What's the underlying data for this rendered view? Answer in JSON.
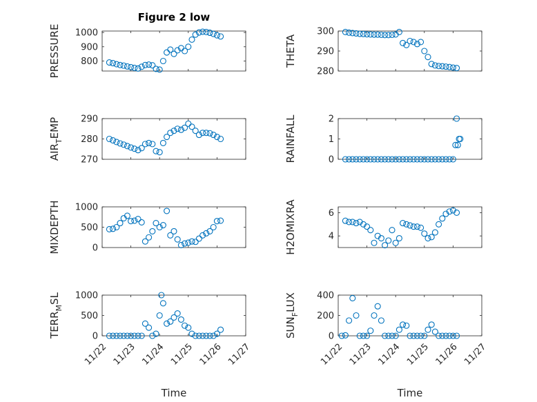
{
  "figure_title": "Figure 2 low",
  "colors": {
    "marker": "#0072BD",
    "axis": "#262626",
    "grid": "#dcdcdc"
  },
  "chart_data": [
    {
      "type": "scatter",
      "panel": "PRESSURE",
      "ylabel": "PRESSURE",
      "xlim": [
        "11/22",
        "11/27"
      ],
      "ylim": [
        730,
        1010
      ],
      "yticks": [
        800,
        900,
        1000
      ],
      "x": [
        "11/22 06:00",
        "11/22 09:00",
        "11/22 12:00",
        "11/22 15:00",
        "11/22 18:00",
        "11/22 21:00",
        "11/23 00:00",
        "11/23 03:00",
        "11/23 06:00",
        "11/23 09:00",
        "11/23 12:00",
        "11/23 15:00",
        "11/23 18:00",
        "11/23 21:00",
        "11/24 00:00",
        "11/24 03:00",
        "11/24 06:00",
        "11/24 09:00",
        "11/24 12:00",
        "11/24 15:00",
        "11/24 18:00",
        "11/24 21:00",
        "11/25 00:00",
        "11/25 03:00",
        "11/25 06:00",
        "11/25 09:00",
        "11/25 12:00",
        "11/25 15:00",
        "11/25 18:00",
        "11/25 21:00",
        "11/26 00:00",
        "11/26 03:00"
      ],
      "y": [
        790,
        785,
        778,
        772,
        768,
        762,
        757,
        752,
        748,
        760,
        772,
        775,
        770,
        745,
        740,
        800,
        860,
        880,
        850,
        875,
        890,
        870,
        900,
        950,
        985,
        1000,
        1005,
        1003,
        998,
        990,
        980,
        972
      ]
    },
    {
      "type": "scatter",
      "panel": "THETA",
      "ylabel": "THETA",
      "xlim": [
        "11/22",
        "11/27"
      ],
      "ylim": [
        280,
        300
      ],
      "yticks": [
        280,
        290,
        300
      ],
      "x": [
        "11/22 06:00",
        "11/22 09:00",
        "11/22 12:00",
        "11/22 15:00",
        "11/22 18:00",
        "11/22 21:00",
        "11/23 00:00",
        "11/23 03:00",
        "11/23 06:00",
        "11/23 09:00",
        "11/23 12:00",
        "11/23 15:00",
        "11/23 18:00",
        "11/23 21:00",
        "11/24 00:00",
        "11/24 03:00",
        "11/24 06:00",
        "11/24 09:00",
        "11/24 12:00",
        "11/24 15:00",
        "11/24 18:00",
        "11/24 21:00",
        "11/25 00:00",
        "11/25 03:00",
        "11/25 06:00",
        "11/25 09:00",
        "11/25 12:00",
        "11/25 15:00",
        "11/25 18:00",
        "11/25 21:00",
        "11/26 00:00",
        "11/26 03:00"
      ],
      "y": [
        299.5,
        299.2,
        299,
        298.8,
        298.6,
        298.5,
        298.4,
        298.3,
        298.2,
        298.2,
        298.1,
        298,
        298,
        298.1,
        298.3,
        299.5,
        294,
        293,
        295,
        294.5,
        293.5,
        294.5,
        290,
        287,
        283.5,
        282.8,
        282.5,
        282.4,
        282.2,
        282,
        281.7,
        281.5
      ]
    },
    {
      "type": "scatter",
      "panel": "AIR_TEMP",
      "ylabel": "AIR_TEMP",
      "xlim": [
        "11/22",
        "11/27"
      ],
      "ylim": [
        270,
        290
      ],
      "yticks": [
        270,
        280,
        290
      ],
      "x": [
        "11/22 06:00",
        "11/22 09:00",
        "11/22 12:00",
        "11/22 15:00",
        "11/22 18:00",
        "11/22 21:00",
        "11/23 00:00",
        "11/23 03:00",
        "11/23 06:00",
        "11/23 09:00",
        "11/23 12:00",
        "11/23 15:00",
        "11/23 18:00",
        "11/23 21:00",
        "11/24 00:00",
        "11/24 03:00",
        "11/24 06:00",
        "11/24 09:00",
        "11/24 12:00",
        "11/24 15:00",
        "11/24 18:00",
        "11/24 21:00",
        "11/25 00:00",
        "11/25 03:00",
        "11/25 06:00",
        "11/25 09:00",
        "11/25 12:00",
        "11/25 15:00",
        "11/25 18:00",
        "11/25 21:00",
        "11/26 00:00",
        "11/26 03:00"
      ],
      "y": [
        280,
        279.3,
        278.5,
        277.8,
        277.2,
        276.5,
        275.8,
        275.2,
        274.5,
        275.5,
        277.5,
        278,
        277.5,
        274,
        273.5,
        278,
        281,
        283,
        284,
        285,
        284.5,
        285.5,
        287.5,
        286,
        284,
        282,
        283,
        283,
        282.8,
        282,
        281,
        280
      ]
    },
    {
      "type": "scatter",
      "panel": "RAINFALL",
      "ylabel": "RAINFALL",
      "xlim": [
        "11/22",
        "11/27"
      ],
      "ylim": [
        0,
        2
      ],
      "yticks": [
        0,
        1,
        2
      ],
      "x": [
        "11/22 06:00",
        "11/22 09:00",
        "11/22 12:00",
        "11/22 15:00",
        "11/22 18:00",
        "11/22 21:00",
        "11/23 00:00",
        "11/23 03:00",
        "11/23 06:00",
        "11/23 09:00",
        "11/23 12:00",
        "11/23 15:00",
        "11/23 18:00",
        "11/23 21:00",
        "11/24 00:00",
        "11/24 03:00",
        "11/24 06:00",
        "11/24 09:00",
        "11/24 12:00",
        "11/24 15:00",
        "11/24 18:00",
        "11/24 21:00",
        "11/25 00:00",
        "11/25 03:00",
        "11/25 06:00",
        "11/25 09:00",
        "11/25 12:00",
        "11/25 15:00",
        "11/25 18:00",
        "11/25 21:00",
        "11/26 00:00",
        "11/26 02:00",
        "11/26 03:00",
        "11/26 04:00",
        "11/26 05:00",
        "11/26 06:00"
      ],
      "y": [
        0,
        0,
        0,
        0,
        0,
        0,
        0,
        0,
        0,
        0,
        0,
        0,
        0,
        0,
        0,
        0,
        0,
        0,
        0,
        0,
        0,
        0,
        0,
        0,
        0,
        0,
        0,
        0,
        0,
        0,
        0,
        0.7,
        2,
        0.7,
        1,
        1
      ]
    },
    {
      "type": "scatter",
      "panel": "MIXDEPTH",
      "ylabel": "MIXDEPTH",
      "xlim": [
        "11/22",
        "11/27"
      ],
      "ylim": [
        0,
        1000
      ],
      "yticks": [
        0,
        500,
        1000
      ],
      "x": [
        "11/22 06:00",
        "11/22 09:00",
        "11/22 12:00",
        "11/22 15:00",
        "11/22 18:00",
        "11/22 21:00",
        "11/23 00:00",
        "11/23 03:00",
        "11/23 06:00",
        "11/23 09:00",
        "11/23 12:00",
        "11/23 15:00",
        "11/23 18:00",
        "11/23 21:00",
        "11/24 00:00",
        "11/24 03:00",
        "11/24 06:00",
        "11/24 09:00",
        "11/24 12:00",
        "11/24 15:00",
        "11/24 18:00",
        "11/24 21:00",
        "11/25 00:00",
        "11/25 03:00",
        "11/25 06:00",
        "11/25 09:00",
        "11/25 12:00",
        "11/25 15:00",
        "11/25 18:00",
        "11/25 21:00",
        "11/26 00:00",
        "11/26 03:00"
      ],
      "y": [
        450,
        460,
        500,
        600,
        720,
        780,
        650,
        660,
        700,
        620,
        150,
        250,
        400,
        600,
        500,
        550,
        900,
        300,
        400,
        200,
        60,
        100,
        120,
        150,
        140,
        220,
        300,
        350,
        400,
        500,
        650,
        660
      ]
    },
    {
      "type": "scatter",
      "panel": "H2OMIXRA",
      "ylabel": "H2OMIXRA",
      "xlim": [
        "11/22",
        "11/27"
      ],
      "ylim": [
        3,
        6.5
      ],
      "yticks": [
        4,
        6
      ],
      "x": [
        "11/22 06:00",
        "11/22 09:00",
        "11/22 12:00",
        "11/22 15:00",
        "11/22 18:00",
        "11/22 21:00",
        "11/23 00:00",
        "11/23 03:00",
        "11/23 06:00",
        "11/23 09:00",
        "11/23 12:00",
        "11/23 15:00",
        "11/23 18:00",
        "11/23 21:00",
        "11/24 00:00",
        "11/24 03:00",
        "11/24 06:00",
        "11/24 09:00",
        "11/24 12:00",
        "11/24 15:00",
        "11/24 18:00",
        "11/24 21:00",
        "11/25 00:00",
        "11/25 03:00",
        "11/25 06:00",
        "11/25 09:00",
        "11/25 12:00",
        "11/25 15:00",
        "11/25 18:00",
        "11/25 21:00",
        "11/26 00:00",
        "11/26 03:00"
      ],
      "y": [
        5.3,
        5.2,
        5.2,
        5.1,
        5.2,
        5,
        4.8,
        4.5,
        3.4,
        4,
        3.8,
        3.2,
        3.6,
        4.5,
        3.4,
        3.8,
        5.1,
        5,
        4.9,
        4.8,
        4.8,
        4.7,
        4.2,
        3.8,
        3.9,
        4.3,
        5,
        5.5,
        5.9,
        6.1,
        6.2,
        6
      ]
    },
    {
      "type": "scatter",
      "panel": "TERR_MSL",
      "ylabel": "TERR_MSL",
      "xlim": [
        "11/22",
        "11/27"
      ],
      "ylim": [
        0,
        1000
      ],
      "yticks": [
        0,
        500,
        1000
      ],
      "x": [
        "11/22 06:00",
        "11/22 09:00",
        "11/22 12:00",
        "11/22 15:00",
        "11/22 18:00",
        "11/22 21:00",
        "11/23 00:00",
        "11/23 03:00",
        "11/23 06:00",
        "11/23 09:00",
        "11/23 12:00",
        "11/23 15:00",
        "11/23 18:00",
        "11/23 21:00",
        "11/24 00:00",
        "11/24 01:30",
        "11/24 03:00",
        "11/24 06:00",
        "11/24 09:00",
        "11/24 12:00",
        "11/24 15:00",
        "11/24 18:00",
        "11/24 21:00",
        "11/25 00:00",
        "11/25 03:00",
        "11/25 06:00",
        "11/25 09:00",
        "11/25 12:00",
        "11/25 15:00",
        "11/25 18:00",
        "11/25 21:00",
        "11/26 00:00",
        "11/26 03:00"
      ],
      "y": [
        0,
        0,
        0,
        0,
        0,
        0,
        0,
        0,
        0,
        0,
        300,
        200,
        0,
        50,
        500,
        1000,
        800,
        300,
        350,
        450,
        550,
        400,
        250,
        200,
        50,
        0,
        0,
        0,
        0,
        0,
        0,
        50,
        150
      ]
    },
    {
      "type": "scatter",
      "panel": "SUN_FLUX",
      "ylabel": "SUN_FLUX",
      "xlim": [
        "11/22",
        "11/27"
      ],
      "ylim": [
        0,
        400
      ],
      "yticks": [
        0,
        200,
        400
      ],
      "x": [
        "11/22 03:00",
        "11/22 06:00",
        "11/22 09:00",
        "11/22 12:00",
        "11/22 15:00",
        "11/22 18:00",
        "11/22 21:00",
        "11/23 00:00",
        "11/23 03:00",
        "11/23 06:00",
        "11/23 09:00",
        "11/23 12:00",
        "11/23 15:00",
        "11/23 18:00",
        "11/23 21:00",
        "11/24 00:00",
        "11/24 03:00",
        "11/24 06:00",
        "11/24 09:00",
        "11/24 12:00",
        "11/24 15:00",
        "11/24 18:00",
        "11/24 21:00",
        "11/25 00:00",
        "11/25 03:00",
        "11/25 06:00",
        "11/25 09:00",
        "11/25 12:00",
        "11/25 15:00",
        "11/25 18:00",
        "11/25 21:00",
        "11/26 00:00",
        "11/26 03:00"
      ],
      "y": [
        0,
        5,
        150,
        370,
        200,
        0,
        0,
        0,
        50,
        200,
        290,
        150,
        0,
        0,
        0,
        0,
        60,
        110,
        100,
        0,
        0,
        0,
        0,
        0,
        60,
        110,
        40,
        0,
        0,
        0,
        0,
        0,
        0
      ]
    }
  ],
  "xticks": [
    "11/22",
    "11/23",
    "11/24",
    "11/25",
    "11/26",
    "11/27"
  ],
  "xlabel": "Time"
}
